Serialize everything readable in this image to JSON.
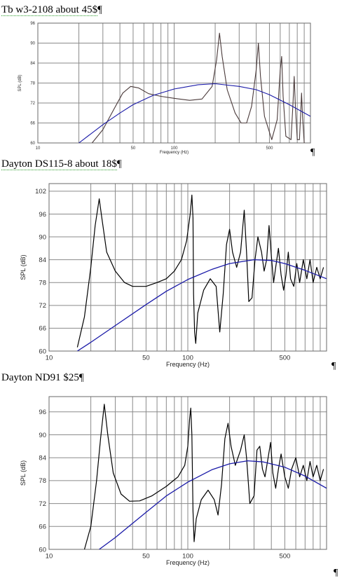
{
  "charts": [
    {
      "heading": "Tb w3-2108  about 45$",
      "pilcrow_heading": "¶",
      "pilcrow_after": "¶"
    },
    {
      "heading": "Dayton DS115-8  about 18$",
      "pilcrow_heading": "¶",
      "pilcrow_after": "¶"
    },
    {
      "heading": "Dayton ND91 $25",
      "pilcrow_heading": "¶",
      "pilcrow_after": "¶"
    }
  ],
  "colors": {
    "response": "#000000",
    "response_chart1": "#4a3a3a",
    "smooth": "#1a1aa8",
    "grid": "#8a8a8a",
    "frame": "#6a6a6a",
    "spell_underline": "#2e9e2e"
  },
  "chart_data": [
    {
      "type": "line",
      "title": "Tb w3-2108  about 45$",
      "xlabel": "Frequency (Hz)",
      "ylabel": "SPL (dB)",
      "xscale": "log",
      "xlim": [
        10,
        1000
      ],
      "ylim": [
        60,
        96
      ],
      "x_tick_labels": [
        "10",
        "50",
        "100",
        "500"
      ],
      "x_tick_values": [
        10,
        50,
        100,
        500
      ],
      "y_ticks": [
        60,
        66,
        72,
        78,
        84,
        90,
        96
      ],
      "grid": true,
      "series": [
        {
          "role": "measured-response",
          "points": [
            [
              25,
              60
            ],
            [
              30,
              64
            ],
            [
              36,
              70
            ],
            [
              42,
              75
            ],
            [
              48,
              77
            ],
            [
              55,
              76.5
            ],
            [
              65,
              74.8
            ],
            [
              80,
              74
            ],
            [
              100,
              73.4
            ],
            [
              130,
              72.8
            ],
            [
              160,
              73.2
            ],
            [
              190,
              77
            ],
            [
              205,
              85
            ],
            [
              215,
              93
            ],
            [
              225,
              86
            ],
            [
              245,
              76
            ],
            [
              280,
              69
            ],
            [
              310,
              66
            ],
            [
              340,
              66
            ],
            [
              370,
              71
            ],
            [
              400,
              82
            ],
            [
              415,
              90
            ],
            [
              430,
              80
            ],
            [
              460,
              68
            ],
            [
              520,
              61
            ],
            [
              570,
              67
            ],
            [
              600,
              82
            ],
            [
              615,
              86
            ],
            [
              630,
              74
            ],
            [
              660,
              62
            ],
            [
              720,
              61
            ],
            [
              745,
              72
            ],
            [
              760,
              80
            ],
            [
              775,
              71
            ],
            [
              800,
              61
            ],
            [
              830,
              61
            ],
            [
              850,
              70
            ],
            [
              860,
              75
            ],
            [
              875,
              68
            ],
            [
              900,
              60
            ]
          ]
        },
        {
          "role": "smoothed-response",
          "points": [
            [
              20,
              60
            ],
            [
              30,
              65.5
            ],
            [
              40,
              69
            ],
            [
              50,
              71.5
            ],
            [
              70,
              74.3
            ],
            [
              100,
              76.2
            ],
            [
              150,
              77.5
            ],
            [
              200,
              77.8
            ],
            [
              300,
              77
            ],
            [
              400,
              76
            ],
            [
              500,
              74.5
            ],
            [
              700,
              71.5
            ],
            [
              1000,
              68
            ]
          ]
        }
      ]
    },
    {
      "type": "line",
      "title": "Dayton DS115-8  about 18$",
      "xlabel": "Frequency (Hz)",
      "ylabel": "SPL (dB)",
      "xscale": "log",
      "xlim": [
        10,
        1000
      ],
      "ylim": [
        60,
        104
      ],
      "x_tick_labels": [
        "10",
        "50",
        "100",
        "500"
      ],
      "x_tick_values": [
        10,
        50,
        100,
        500
      ],
      "y_ticks": [
        60,
        66,
        72,
        78,
        84,
        90,
        96,
        102
      ],
      "grid": true,
      "series": [
        {
          "role": "measured-response",
          "points": [
            [
              16,
              61
            ],
            [
              18,
              69
            ],
            [
              20,
              82
            ],
            [
              21.5,
              93
            ],
            [
              23,
              100
            ],
            [
              24,
              95
            ],
            [
              26,
              86
            ],
            [
              30,
              81
            ],
            [
              35,
              78
            ],
            [
              40,
              77
            ],
            [
              50,
              77
            ],
            [
              60,
              78
            ],
            [
              70,
              79
            ],
            [
              80,
              81
            ],
            [
              90,
              84
            ],
            [
              98,
              89
            ],
            [
              104,
              96
            ],
            [
              107,
              101
            ],
            [
              109,
              95
            ],
            [
              110,
              75
            ],
            [
              112,
              65
            ],
            [
              114,
              62
            ],
            [
              118,
              70
            ],
            [
              130,
              76
            ],
            [
              145,
              79
            ],
            [
              160,
              77
            ],
            [
              170,
              65
            ],
            [
              180,
              75
            ],
            [
              190,
              88
            ],
            [
              200,
              92
            ],
            [
              210,
              86
            ],
            [
              225,
              82
            ],
            [
              240,
              86
            ],
            [
              255,
              97
            ],
            [
              265,
              86
            ],
            [
              275,
              73
            ],
            [
              290,
              74
            ],
            [
              305,
              84
            ],
            [
              320,
              90
            ],
            [
              340,
              86
            ],
            [
              355,
              81
            ],
            [
              370,
              84
            ],
            [
              385,
              93
            ],
            [
              400,
              85
            ],
            [
              415,
              78
            ],
            [
              430,
              82
            ],
            [
              450,
              87
            ],
            [
              470,
              80
            ],
            [
              490,
              76
            ],
            [
              510,
              80
            ],
            [
              530,
              86
            ],
            [
              550,
              79
            ],
            [
              580,
              77
            ],
            [
              610,
              83
            ],
            [
              640,
              78
            ],
            [
              680,
              84
            ],
            [
              720,
              79
            ],
            [
              760,
              84
            ],
            [
              800,
              78
            ],
            [
              850,
              82
            ],
            [
              900,
              79
            ],
            [
              950,
              82
            ]
          ]
        },
        {
          "role": "smoothed-response",
          "points": [
            [
              16,
              60
            ],
            [
              20,
              62.3
            ],
            [
              30,
              66.7
            ],
            [
              50,
              72.2
            ],
            [
              70,
              75.7
            ],
            [
              100,
              78.8
            ],
            [
              150,
              81.5
            ],
            [
              200,
              83
            ],
            [
              300,
              84
            ],
            [
              400,
              83.8
            ],
            [
              500,
              83
            ],
            [
              700,
              81.2
            ],
            [
              1000,
              79
            ]
          ]
        }
      ]
    },
    {
      "type": "line",
      "title": "Dayton ND91 $25",
      "xlabel": "Frequency (Hz)",
      "ylabel": "SPL (dB)",
      "xscale": "log",
      "xlim": [
        10,
        1000
      ],
      "ylim": [
        60,
        100
      ],
      "x_tick_labels": [
        "10",
        "50",
        "100",
        "500"
      ],
      "x_tick_values": [
        10,
        50,
        100,
        500
      ],
      "y_ticks": [
        60,
        66,
        72,
        78,
        84,
        90,
        96
      ],
      "grid": true,
      "series": [
        {
          "role": "measured-response",
          "points": [
            [
              18,
              60
            ],
            [
              20,
              66
            ],
            [
              22,
              78
            ],
            [
              23.5,
              89
            ],
            [
              25,
              98
            ],
            [
              26.5,
              90
            ],
            [
              29,
              80
            ],
            [
              33,
              74.5
            ],
            [
              38,
              72.6
            ],
            [
              45,
              72.7
            ],
            [
              55,
              74
            ],
            [
              70,
              76.5
            ],
            [
              85,
              79
            ],
            [
              95,
              82
            ],
            [
              100,
              87
            ],
            [
              103,
              94
            ],
            [
              105,
              97
            ],
            [
              107,
              90
            ],
            [
              109,
              70
            ],
            [
              111,
              62
            ],
            [
              115,
              68
            ],
            [
              125,
              73
            ],
            [
              140,
              75.5
            ],
            [
              155,
              73
            ],
            [
              165,
              69
            ],
            [
              175,
              77
            ],
            [
              185,
              89
            ],
            [
              195,
              93
            ],
            [
              205,
              87
            ],
            [
              220,
              82
            ],
            [
              240,
              86
            ],
            [
              255,
              90
            ],
            [
              265,
              84
            ],
            [
              280,
              72
            ],
            [
              300,
              74
            ],
            [
              315,
              86
            ],
            [
              330,
              87
            ],
            [
              345,
              81
            ],
            [
              360,
              79
            ],
            [
              375,
              83
            ],
            [
              395,
              88
            ],
            [
              410,
              80
            ],
            [
              430,
              76
            ],
            [
              450,
              81
            ],
            [
              470,
              85
            ],
            [
              500,
              79
            ],
            [
              530,
              76
            ],
            [
              560,
              81
            ],
            [
              600,
              84
            ],
            [
              640,
              79
            ],
            [
              680,
              82
            ],
            [
              720,
              78
            ],
            [
              760,
              83
            ],
            [
              800,
              79
            ],
            [
              850,
              82
            ],
            [
              900,
              78
            ],
            [
              950,
              81
            ]
          ]
        },
        {
          "role": "smoothed-response",
          "points": [
            [
              23,
              60
            ],
            [
              30,
              63.1
            ],
            [
              50,
              69.7
            ],
            [
              70,
              74
            ],
            [
              100,
              77.6
            ],
            [
              150,
              80.9
            ],
            [
              200,
              82.4
            ],
            [
              270,
              83.2
            ],
            [
              350,
              82.9
            ],
            [
              500,
              81.5
            ],
            [
              700,
              79.2
            ],
            [
              1000,
              76
            ]
          ]
        }
      ]
    }
  ]
}
